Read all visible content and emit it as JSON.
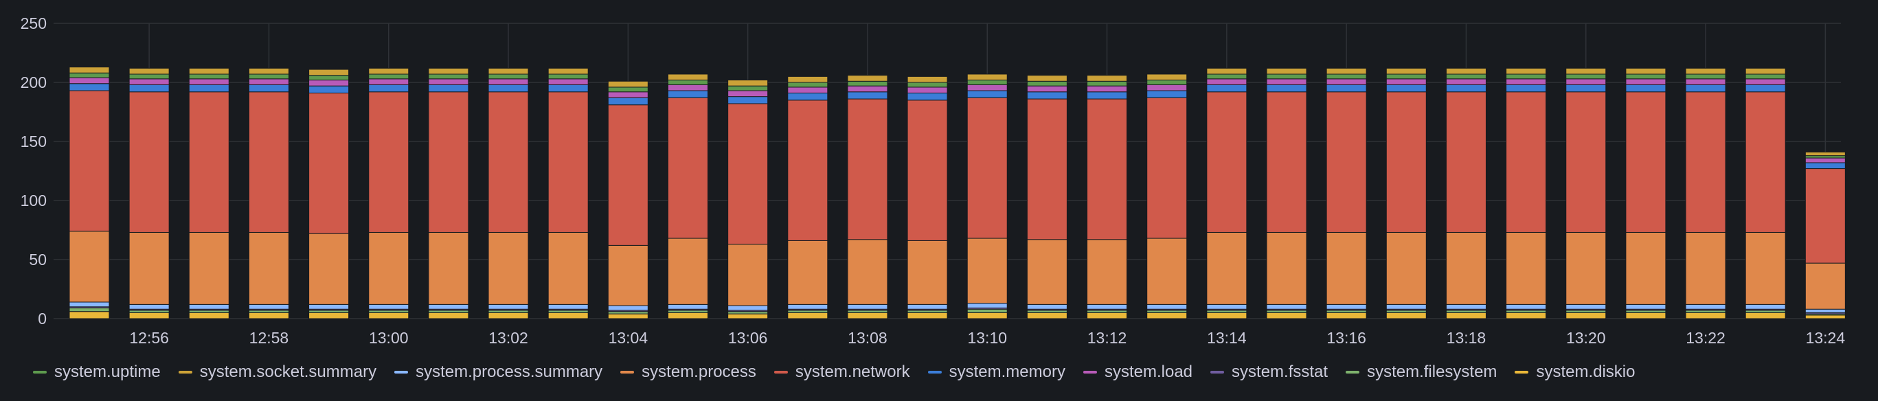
{
  "chart_data": {
    "type": "bar",
    "stacked": true,
    "ylim": [
      0,
      250
    ],
    "yticks": [
      0,
      50,
      100,
      150,
      200,
      250
    ],
    "x_tick_labels": [
      "12:56",
      "12:58",
      "13:00",
      "13:02",
      "13:04",
      "13:06",
      "13:08",
      "13:10",
      "13:12",
      "13:14",
      "13:16",
      "13:18",
      "13:20",
      "13:22",
      "13:24"
    ],
    "categories": [
      "12:55",
      "12:56",
      "12:57",
      "12:58",
      "12:59",
      "13:00",
      "13:01",
      "13:02",
      "13:03",
      "13:04",
      "13:05",
      "13:06",
      "13:07",
      "13:08",
      "13:09",
      "13:10",
      "13:11",
      "13:12",
      "13:13",
      "13:14",
      "13:15",
      "13:16",
      "13:17",
      "13:18",
      "13:19",
      "13:20",
      "13:21",
      "13:22",
      "13:23",
      "13:24"
    ],
    "grid": true,
    "legend_position": "bottom",
    "series": [
      {
        "name": "system.diskio",
        "color": "#EAB839",
        "values": [
          6,
          5,
          5,
          5,
          5,
          5,
          5,
          5,
          5,
          4,
          5,
          4,
          5,
          5,
          5,
          5,
          5,
          5,
          5,
          5,
          5,
          5,
          5,
          5,
          5,
          5,
          5,
          5,
          5,
          3
        ]
      },
      {
        "name": "system.filesystem",
        "color": "#7EB26D",
        "values": [
          3,
          2,
          2,
          2,
          2,
          2,
          2,
          2,
          2,
          2,
          2,
          2,
          2,
          2,
          2,
          3,
          2,
          2,
          2,
          2,
          2,
          2,
          2,
          2,
          2,
          2,
          2,
          2,
          2,
          1
        ]
      },
      {
        "name": "system.fsstat",
        "color": "#705DA0",
        "values": [
          1,
          1,
          1,
          1,
          1,
          1,
          1,
          1,
          1,
          1,
          1,
          1,
          1,
          1,
          1,
          1,
          1,
          1,
          1,
          1,
          1,
          1,
          1,
          1,
          1,
          1,
          1,
          1,
          1,
          1
        ]
      },
      {
        "name": "system.process.summary",
        "color": "#8AB8FF",
        "values": [
          4,
          4,
          4,
          4,
          4,
          4,
          4,
          4,
          4,
          4,
          4,
          4,
          4,
          4,
          4,
          4,
          4,
          4,
          4,
          4,
          4,
          4,
          4,
          4,
          4,
          4,
          4,
          4,
          4,
          3
        ]
      },
      {
        "name": "system.process",
        "color": "#E0884B",
        "values": [
          60,
          61,
          61,
          61,
          60,
          61,
          61,
          61,
          61,
          51,
          56,
          52,
          54,
          55,
          54,
          55,
          55,
          55,
          56,
          61,
          61,
          61,
          61,
          61,
          61,
          61,
          61,
          61,
          61,
          39
        ]
      },
      {
        "name": "system.network",
        "color": "#D05A4B",
        "values": [
          119,
          119,
          119,
          119,
          119,
          119,
          119,
          119,
          119,
          119,
          119,
          119,
          119,
          119,
          119,
          119,
          119,
          119,
          119,
          119,
          119,
          119,
          119,
          119,
          119,
          119,
          119,
          119,
          119,
          80
        ]
      },
      {
        "name": "system.memory",
        "color": "#3B7DD8",
        "values": [
          6,
          6,
          6,
          6,
          6,
          6,
          6,
          6,
          6,
          6,
          6,
          6,
          6,
          6,
          6,
          6,
          6,
          6,
          6,
          6,
          6,
          6,
          6,
          6,
          6,
          6,
          6,
          6,
          6,
          5
        ]
      },
      {
        "name": "system.load",
        "color": "#B85BB8",
        "values": [
          5,
          5,
          5,
          5,
          5,
          5,
          5,
          5,
          5,
          5,
          5,
          5,
          5,
          5,
          5,
          5,
          5,
          5,
          5,
          5,
          5,
          5,
          5,
          5,
          5,
          5,
          5,
          5,
          5,
          4
        ]
      },
      {
        "name": "system.uptime",
        "color": "#5E9B4E",
        "values": [
          4,
          4,
          4,
          4,
          4,
          4,
          4,
          4,
          4,
          4,
          4,
          4,
          4,
          4,
          4,
          4,
          4,
          4,
          4,
          4,
          4,
          4,
          4,
          4,
          4,
          4,
          4,
          4,
          4,
          2
        ]
      },
      {
        "name": "system.socket.summary",
        "color": "#CCA238",
        "values": [
          5,
          5,
          5,
          5,
          5,
          5,
          5,
          5,
          5,
          5,
          5,
          5,
          5,
          5,
          5,
          5,
          5,
          5,
          5,
          5,
          5,
          5,
          5,
          5,
          5,
          5,
          5,
          5,
          5,
          3
        ]
      }
    ],
    "legend_order": [
      "system.uptime",
      "system.socket.summary",
      "system.process.summary",
      "system.process",
      "system.network",
      "system.memory",
      "system.load",
      "system.fsstat",
      "system.filesystem",
      "system.diskio"
    ]
  }
}
